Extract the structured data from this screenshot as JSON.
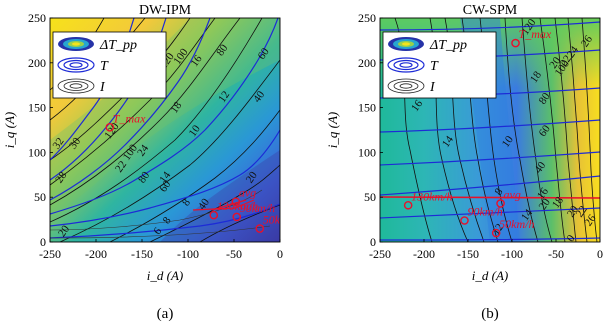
{
  "chart_data": [
    {
      "type": "contour",
      "caption": "(a)",
      "title": "DW-IPM",
      "xlabel": "i_d (A)",
      "ylabel": "i_q (A)",
      "xlim": [
        -250,
        0
      ],
      "ylim": [
        0,
        250
      ],
      "xticks": [
        -250,
        -200,
        -150,
        -100,
        -50,
        0
      ],
      "yticks": [
        0,
        50,
        100,
        150,
        200,
        250
      ],
      "legend": {
        "placement": "top-left",
        "entries": [
          "ΔT_pp",
          "T",
          "I"
        ]
      },
      "ripple_contour_labels": [
        {
          "value": "32",
          "x": -238,
          "y": 108
        },
        {
          "value": "30",
          "x": -220,
          "y": 108
        },
        {
          "value": "28",
          "x": -235,
          "y": 70
        },
        {
          "value": "22",
          "x": -170,
          "y": 82
        },
        {
          "value": "24",
          "x": -146,
          "y": 100
        },
        {
          "value": "20",
          "x": -232,
          "y": 10
        },
        {
          "value": "18",
          "x": -110,
          "y": 148
        },
        {
          "value": "16",
          "x": -88,
          "y": 200
        },
        {
          "value": "14",
          "x": -122,
          "y": 70
        },
        {
          "value": "12",
          "x": -58,
          "y": 160
        },
        {
          "value": "10",
          "x": -90,
          "y": 122
        },
        {
          "value": "8",
          "x": -120,
          "y": 22
        }
      ],
      "torque_contour_labels": [
        {
          "value": "120",
          "x": -180,
          "y": 122
        },
        {
          "value": "120",
          "x": -120,
          "y": 200
        },
        {
          "value": "100",
          "x": -160,
          "y": 98
        },
        {
          "value": "100",
          "x": -105,
          "y": 205
        },
        {
          "value": "80",
          "x": -145,
          "y": 70
        },
        {
          "value": "80",
          "x": -60,
          "y": 212
        },
        {
          "value": "60",
          "x": -122,
          "y": 60
        },
        {
          "value": "60",
          "x": -15,
          "y": 208
        },
        {
          "value": "40",
          "x": -80,
          "y": 40
        },
        {
          "value": "40",
          "x": -20,
          "y": 160
        },
        {
          "value": "20",
          "x": -28,
          "y": 70
        }
      ],
      "current_contour_labels": [
        {
          "value": "8",
          "x": -99,
          "y": 42
        },
        {
          "value": "6",
          "x": -130,
          "y": 10
        }
      ],
      "operating_points": [
        {
          "label": "T_max",
          "id": -185,
          "iq": 128
        },
        {
          "label": "avg",
          "id": -48,
          "iq": 45
        },
        {
          "label": "130km/h",
          "id": -72,
          "iq": 30
        },
        {
          "label": "90km/h",
          "id": -47,
          "iq": 28
        },
        {
          "label": "50km/h",
          "id": -22,
          "iq": 15
        }
      ]
    },
    {
      "type": "contour",
      "caption": "(b)",
      "title": "CW-SPM",
      "xlabel": "i_d (A)",
      "ylabel": "i_q (A)",
      "xlim": [
        -250,
        0
      ],
      "ylim": [
        0,
        250
      ],
      "xticks": [
        -250,
        -200,
        -150,
        -100,
        -50,
        0
      ],
      "yticks": [
        0,
        50,
        100,
        150,
        200,
        250
      ],
      "legend": {
        "placement": "top-left",
        "entries": [
          "ΔT_pp",
          "T",
          "I"
        ]
      },
      "ripple_contour_labels": [
        {
          "value": "20",
          "x": -48,
          "y": 198
        },
        {
          "value": "22",
          "x": -36,
          "y": 200
        },
        {
          "value": "24",
          "x": -28,
          "y": 210
        },
        {
          "value": "26",
          "x": -12,
          "y": 222
        },
        {
          "value": "18",
          "x": -70,
          "y": 182
        },
        {
          "value": "16",
          "x": -205,
          "y": 150
        },
        {
          "value": "14",
          "x": -170,
          "y": 110
        },
        {
          "value": "12",
          "x": -135,
          "y": 168
        },
        {
          "value": "10",
          "x": -102,
          "y": 110
        },
        {
          "value": "8",
          "x": -112,
          "y": 54
        },
        {
          "value": "16",
          "x": -62,
          "y": 52
        },
        {
          "value": "18",
          "x": -45,
          "y": 42
        },
        {
          "value": "14",
          "x": -80,
          "y": 28
        },
        {
          "value": "12",
          "x": -113,
          "y": 12
        },
        {
          "value": "20",
          "x": -28,
          "y": 32
        },
        {
          "value": "22",
          "x": -18,
          "y": 32
        },
        {
          "value": "26",
          "x": -8,
          "y": 22
        }
      ],
      "torque_contour_labels": [
        {
          "value": "120",
          "x": -78,
          "y": 238
        },
        {
          "value": "100",
          "x": -40,
          "y": 192
        },
        {
          "value": "80",
          "x": -60,
          "y": 158
        },
        {
          "value": "60",
          "x": -60,
          "y": 122
        },
        {
          "value": "40",
          "x": -65,
          "y": 81
        },
        {
          "value": "20",
          "x": -60,
          "y": 40
        },
        {
          "value": "0",
          "x": -30,
          "y": 2
        }
      ],
      "current_contour_labels": [],
      "operating_points": [
        {
          "label": "T_max",
          "id": -96,
          "iq": 222
        },
        {
          "label": "avg",
          "id": -113,
          "iq": 43
        },
        {
          "label": "130km/h",
          "id": -218,
          "iq": 41
        },
        {
          "label": "90km/h",
          "id": -154,
          "iq": 24
        },
        {
          "label": "50km/h",
          "id": -118,
          "iq": 10
        }
      ]
    }
  ]
}
